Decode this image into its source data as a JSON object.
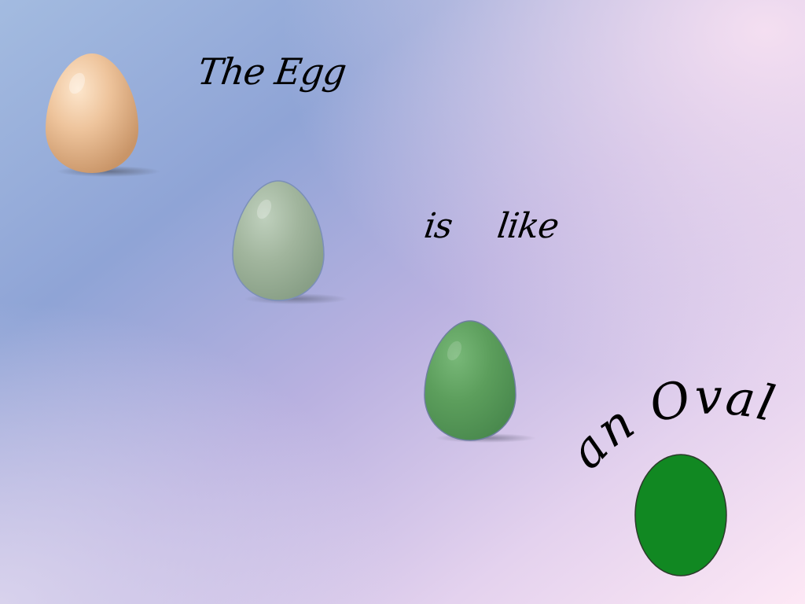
{
  "slide": {
    "title": "The Egg",
    "word_is": "is",
    "word_like": "like",
    "arc_text": "an Oval",
    "colors": {
      "background_top_left": "#a8bde0",
      "background_mid": "#b8b2df",
      "background_bottom_right": "#fbe6f4",
      "real_egg": "#eabf97",
      "faded_egg": "#9fb39a",
      "green_egg": "#5a9e5a",
      "oval_fill": "#118822",
      "text": "#000000"
    },
    "icons": [
      "natural-egg",
      "faded-egg",
      "green-egg",
      "green-oval"
    ]
  }
}
